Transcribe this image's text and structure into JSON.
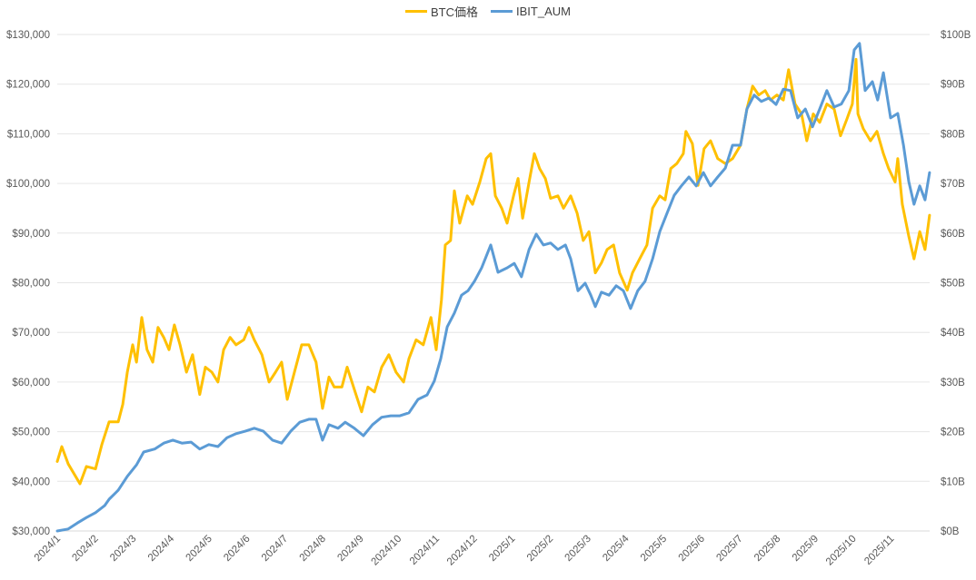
{
  "chart_data": {
    "type": "line",
    "title": "",
    "legend": [
      "BTC価格",
      "IBIT_AUM"
    ],
    "legend_placement": "top",
    "x_unit": "months since 2024/1",
    "x_tick_labels": [
      "2024/1",
      "2024/2",
      "2024/3",
      "2024/4",
      "2024/5",
      "2024/6",
      "2024/7",
      "2024/8",
      "2024/9",
      "2024/10",
      "2024/11",
      "2024/12",
      "2025/1",
      "2025/2",
      "2025/3",
      "2025/4",
      "2025/5",
      "2025/6",
      "2025/7",
      "2025/8",
      "2025/9",
      "2025/10",
      "2025/11"
    ],
    "y_left": {
      "ylim": [
        30000,
        130000
      ],
      "ticks": [
        30000,
        40000,
        50000,
        60000,
        70000,
        80000,
        90000,
        100000,
        110000,
        120000,
        130000
      ],
      "tick_labels": [
        "$30,000",
        "$40,000",
        "$50,000",
        "$60,000",
        "$70,000",
        "$80,000",
        "$90,000",
        "$100,000",
        "$110,000",
        "$120,000",
        "$130,000"
      ]
    },
    "y_right": {
      "ylim": [
        0,
        100
      ],
      "ticks": [
        0,
        10,
        20,
        30,
        40,
        50,
        60,
        70,
        80,
        90,
        100
      ],
      "tick_labels": [
        "$0B",
        "$10B",
        "$20B",
        "$30B",
        "$40B",
        "$50B",
        "$60B",
        "$70B",
        "$80B",
        "$90B",
        "$100B"
      ]
    },
    "grid": true,
    "series": [
      {
        "name": "BTC価格",
        "axis": "left",
        "color": "#FFC000",
        "points": [
          [
            0,
            44000
          ],
          [
            0.12,
            47000
          ],
          [
            0.29,
            43500
          ],
          [
            0.6,
            39500
          ],
          [
            0.77,
            43000
          ],
          [
            1.01,
            42500
          ],
          [
            1.18,
            47500
          ],
          [
            1.37,
            52000
          ],
          [
            1.61,
            52000
          ],
          [
            1.73,
            55500
          ],
          [
            1.85,
            62000
          ],
          [
            1.99,
            67500
          ],
          [
            2.09,
            64000
          ],
          [
            2.23,
            73000
          ],
          [
            2.37,
            66500
          ],
          [
            2.52,
            64000
          ],
          [
            2.66,
            71000
          ],
          [
            2.81,
            69000
          ],
          [
            2.95,
            66500
          ],
          [
            3.09,
            71500
          ],
          [
            3.24,
            67500
          ],
          [
            3.41,
            62000
          ],
          [
            3.57,
            65500
          ],
          [
            3.76,
            57500
          ],
          [
            3.91,
            63000
          ],
          [
            4.08,
            62000
          ],
          [
            4.24,
            60000
          ],
          [
            4.39,
            66500
          ],
          [
            4.56,
            69000
          ],
          [
            4.72,
            67500
          ],
          [
            4.92,
            68500
          ],
          [
            5.06,
            71000
          ],
          [
            5.2,
            68500
          ],
          [
            5.4,
            65500
          ],
          [
            5.59,
            60000
          ],
          [
            5.76,
            62000
          ],
          [
            5.92,
            64000
          ],
          [
            6.07,
            56500
          ],
          [
            6.26,
            62000
          ],
          [
            6.45,
            67500
          ],
          [
            6.64,
            67500
          ],
          [
            6.83,
            64000
          ],
          [
            7.0,
            54700
          ],
          [
            7.17,
            61000
          ],
          [
            7.31,
            59000
          ],
          [
            7.51,
            59000
          ],
          [
            7.65,
            63000
          ],
          [
            7.84,
            58500
          ],
          [
            8.03,
            54000
          ],
          [
            8.2,
            59000
          ],
          [
            8.37,
            58000
          ],
          [
            8.56,
            63000
          ],
          [
            8.75,
            65500
          ],
          [
            8.94,
            62000
          ],
          [
            9.14,
            60000
          ],
          [
            9.28,
            64700
          ],
          [
            9.47,
            68500
          ],
          [
            9.66,
            67500
          ],
          [
            9.86,
            73000
          ],
          [
            10.0,
            66500
          ],
          [
            10.14,
            76600
          ],
          [
            10.24,
            87600
          ],
          [
            10.38,
            88500
          ],
          [
            10.48,
            98500
          ],
          [
            10.62,
            92000
          ],
          [
            10.82,
            97500
          ],
          [
            10.96,
            95800
          ],
          [
            11.15,
            100300
          ],
          [
            11.32,
            105000
          ],
          [
            11.44,
            106000
          ],
          [
            11.56,
            97500
          ],
          [
            11.73,
            95000
          ],
          [
            11.87,
            92000
          ],
          [
            12.04,
            97500
          ],
          [
            12.16,
            101000
          ],
          [
            12.28,
            93000
          ],
          [
            12.45,
            100300
          ],
          [
            12.59,
            106000
          ],
          [
            12.73,
            103000
          ],
          [
            12.88,
            101000
          ],
          [
            13.02,
            97000
          ],
          [
            13.21,
            97500
          ],
          [
            13.36,
            95000
          ],
          [
            13.55,
            97500
          ],
          [
            13.72,
            94000
          ],
          [
            13.88,
            88500
          ],
          [
            14.03,
            90300
          ],
          [
            14.2,
            82000
          ],
          [
            14.36,
            84000
          ],
          [
            14.51,
            86700
          ],
          [
            14.68,
            87600
          ],
          [
            14.84,
            82000
          ],
          [
            15.04,
            78500
          ],
          [
            15.18,
            82000
          ],
          [
            15.37,
            84800
          ],
          [
            15.56,
            87600
          ],
          [
            15.71,
            95000
          ],
          [
            15.9,
            97500
          ],
          [
            16.04,
            96700
          ],
          [
            16.19,
            103000
          ],
          [
            16.35,
            104000
          ],
          [
            16.52,
            106000
          ],
          [
            16.59,
            110500
          ],
          [
            16.76,
            108000
          ],
          [
            16.91,
            99600
          ],
          [
            17.07,
            107000
          ],
          [
            17.24,
            108600
          ],
          [
            17.43,
            105000
          ],
          [
            17.63,
            104000
          ],
          [
            17.82,
            105000
          ],
          [
            18.03,
            107700
          ],
          [
            18.2,
            115000
          ],
          [
            18.35,
            119600
          ],
          [
            18.51,
            117800
          ],
          [
            18.68,
            118700
          ],
          [
            18.82,
            116800
          ],
          [
            18.99,
            117800
          ],
          [
            19.16,
            116800
          ],
          [
            19.3,
            122900
          ],
          [
            19.47,
            116000
          ],
          [
            19.64,
            114000
          ],
          [
            19.78,
            108600
          ],
          [
            19.95,
            114000
          ],
          [
            20.12,
            112300
          ],
          [
            20.31,
            116000
          ],
          [
            20.5,
            115000
          ],
          [
            20.67,
            109600
          ],
          [
            20.84,
            113000
          ],
          [
            20.98,
            116000
          ],
          [
            21.08,
            125000
          ],
          [
            21.13,
            114000
          ],
          [
            21.27,
            111000
          ],
          [
            21.46,
            108600
          ],
          [
            21.63,
            110500
          ],
          [
            21.8,
            106000
          ],
          [
            21.94,
            103000
          ],
          [
            22.11,
            100300
          ],
          [
            22.18,
            105000
          ],
          [
            22.3,
            95800
          ],
          [
            22.47,
            89400
          ],
          [
            22.61,
            84800
          ],
          [
            22.76,
            90300
          ],
          [
            22.9,
            86700
          ],
          [
            23.02,
            93600
          ]
        ]
      },
      {
        "name": "IBIT_AUM",
        "axis": "right",
        "color": "#5B9BD5",
        "points": [
          [
            0,
            0
          ],
          [
            0.29,
            0.4
          ],
          [
            0.53,
            1.6
          ],
          [
            0.77,
            2.7
          ],
          [
            1.01,
            3.7
          ],
          [
            1.25,
            5.1
          ],
          [
            1.37,
            6.4
          ],
          [
            1.61,
            8.2
          ],
          [
            1.85,
            11
          ],
          [
            2.09,
            13.3
          ],
          [
            2.28,
            15.9
          ],
          [
            2.57,
            16.5
          ],
          [
            2.81,
            17.7
          ],
          [
            3.05,
            18.3
          ],
          [
            3.29,
            17.7
          ],
          [
            3.53,
            17.9
          ],
          [
            3.76,
            16.5
          ],
          [
            4.0,
            17.4
          ],
          [
            4.24,
            17
          ],
          [
            4.48,
            18.8
          ],
          [
            4.72,
            19.6
          ],
          [
            4.96,
            20.1
          ],
          [
            5.2,
            20.7
          ],
          [
            5.44,
            20.1
          ],
          [
            5.68,
            18.3
          ],
          [
            5.92,
            17.7
          ],
          [
            6.16,
            20.1
          ],
          [
            6.4,
            21.9
          ],
          [
            6.64,
            22.5
          ],
          [
            6.83,
            22.5
          ],
          [
            7.0,
            18.3
          ],
          [
            7.17,
            21.4
          ],
          [
            7.41,
            20.7
          ],
          [
            7.6,
            21.9
          ],
          [
            7.84,
            20.7
          ],
          [
            8.08,
            19.2
          ],
          [
            8.32,
            21.4
          ],
          [
            8.56,
            22.9
          ],
          [
            8.8,
            23.2
          ],
          [
            9.04,
            23.2
          ],
          [
            9.28,
            23.8
          ],
          [
            9.52,
            26.5
          ],
          [
            9.76,
            27.4
          ],
          [
            9.95,
            30.2
          ],
          [
            10.12,
            34.7
          ],
          [
            10.29,
            41.1
          ],
          [
            10.48,
            43.9
          ],
          [
            10.67,
            47.5
          ],
          [
            10.84,
            48.4
          ],
          [
            11.01,
            50.3
          ],
          [
            11.2,
            53
          ],
          [
            11.44,
            57.6
          ],
          [
            11.63,
            52.1
          ],
          [
            11.87,
            53
          ],
          [
            12.06,
            53.9
          ],
          [
            12.25,
            51.2
          ],
          [
            12.45,
            56.7
          ],
          [
            12.64,
            59.8
          ],
          [
            12.83,
            57.6
          ],
          [
            13.02,
            58
          ],
          [
            13.21,
            56.7
          ],
          [
            13.41,
            57.6
          ],
          [
            13.55,
            54.8
          ],
          [
            13.74,
            48.4
          ],
          [
            13.93,
            49.9
          ],
          [
            14.08,
            47.5
          ],
          [
            14.2,
            45.2
          ],
          [
            14.36,
            48.1
          ],
          [
            14.56,
            47.5
          ],
          [
            14.75,
            49.4
          ],
          [
            14.94,
            48.4
          ],
          [
            15.13,
            44.8
          ],
          [
            15.32,
            48.4
          ],
          [
            15.51,
            50.3
          ],
          [
            15.71,
            54.8
          ],
          [
            15.9,
            60.3
          ],
          [
            16.09,
            64
          ],
          [
            16.28,
            67.6
          ],
          [
            16.47,
            69.5
          ],
          [
            16.67,
            71.3
          ],
          [
            16.86,
            69.5
          ],
          [
            17.05,
            72.2
          ],
          [
            17.24,
            69.5
          ],
          [
            17.43,
            71.3
          ],
          [
            17.63,
            73.1
          ],
          [
            17.82,
            77.7
          ],
          [
            18.03,
            77.7
          ],
          [
            18.2,
            85
          ],
          [
            18.39,
            87.8
          ],
          [
            18.58,
            86.5
          ],
          [
            18.78,
            87.2
          ],
          [
            18.97,
            85.9
          ],
          [
            19.16,
            89
          ],
          [
            19.35,
            88.7
          ],
          [
            19.54,
            83.2
          ],
          [
            19.74,
            85
          ],
          [
            19.93,
            81.4
          ],
          [
            20.12,
            85
          ],
          [
            20.31,
            88.7
          ],
          [
            20.5,
            85.4
          ],
          [
            20.69,
            86
          ],
          [
            20.89,
            88.7
          ],
          [
            21.03,
            96.9
          ],
          [
            21.17,
            98.2
          ],
          [
            21.32,
            88.7
          ],
          [
            21.51,
            90.5
          ],
          [
            21.65,
            86.8
          ],
          [
            21.8,
            92.3
          ],
          [
            21.99,
            83.2
          ],
          [
            22.18,
            84.1
          ],
          [
            22.33,
            77.7
          ],
          [
            22.47,
            70.4
          ],
          [
            22.61,
            65.8
          ],
          [
            22.76,
            69.5
          ],
          [
            22.9,
            66.7
          ],
          [
            23.02,
            72.2
          ]
        ]
      }
    ]
  }
}
